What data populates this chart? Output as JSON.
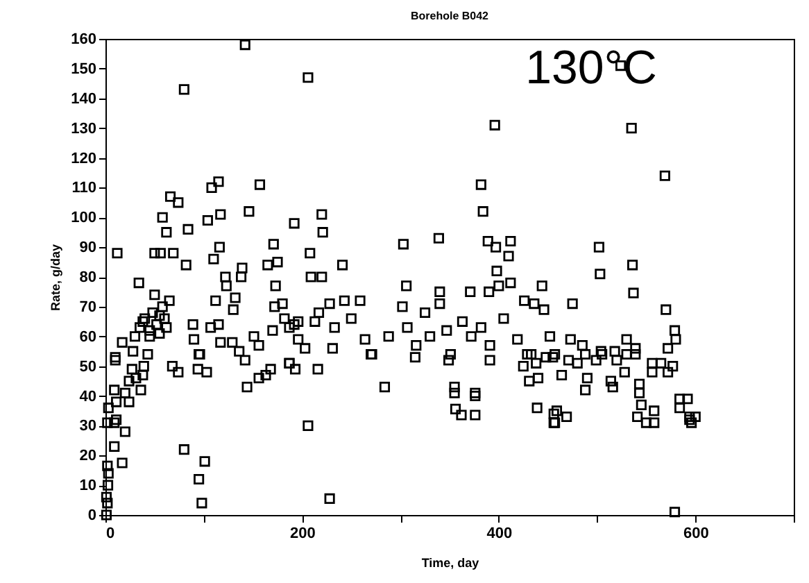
{
  "chart_data": {
    "type": "scatter",
    "title": "Borehole B042",
    "xlabel": "Time, day",
    "ylabel": "Rate, g/day",
    "annotations": [
      "130°C"
    ],
    "xlim": [
      0,
      700
    ],
    "ylim": [
      0,
      160
    ],
    "xticks": [
      0,
      {
        "value": 100,
        "label": null
      },
      200,
      {
        "value": 300,
        "label": null
      },
      400,
      {
        "value": 500,
        "label": null
      },
      600,
      {
        "value": 700,
        "label": null
      }
    ],
    "yticks": [
      0,
      10,
      20,
      30,
      40,
      50,
      60,
      70,
      80,
      90,
      100,
      110,
      120,
      130,
      140,
      150,
      160
    ],
    "grid": false,
    "marker": "square",
    "x": [
      142,
      80,
      12,
      34,
      66,
      74,
      58,
      62,
      84,
      82,
      69,
      50,
      56,
      108,
      115,
      117,
      104,
      116,
      110,
      146,
      157,
      192,
      171,
      175,
      165,
      173,
      122,
      123,
      139,
      138,
      112,
      132,
      130,
      180,
      172,
      17,
      10,
      43,
      89,
      90,
      96,
      107,
      115,
      117,
      129,
      151,
      156,
      170,
      187,
      192,
      196,
      1,
      1,
      2,
      2.5,
      3,
      2,
      9,
      17,
      20,
      2,
      9,
      11,
      3,
      9,
      11,
      20,
      24,
      24,
      31,
      36,
      38,
      39,
      27,
      10,
      80,
      101,
      95,
      98,
      68,
      74,
      94,
      103,
      95,
      136,
      142,
      144,
      156,
      163,
      168,
      187,
      193,
      35,
      40,
      45,
      48,
      52,
      55,
      58,
      60,
      62,
      65,
      45,
      38,
      30,
      28,
      50,
      55,
      206,
      396,
      382,
      384,
      220,
      221,
      208,
      209,
      220,
      241,
      303,
      339,
      306,
      340,
      340,
      371,
      390,
      400,
      398,
      389,
      397,
      412,
      410,
      412,
      444,
      426,
      436,
      446,
      228,
      243,
      259,
      217,
      182,
      196,
      213,
      233,
      250,
      264,
      271,
      288,
      302,
      307,
      316,
      325,
      330,
      347,
      351,
      363,
      372,
      382,
      391,
      405,
      419,
      429,
      438,
      203,
      231,
      206,
      228,
      284,
      355,
      355,
      376,
      376,
      356,
      362,
      376,
      439,
      456,
      456,
      431,
      440,
      187,
      216,
      270,
      315,
      349,
      391,
      425,
      433,
      524,
      535,
      569,
      502,
      503,
      536,
      537,
      475,
      570,
      579,
      580,
      452,
      473,
      530,
      485,
      504,
      518,
      539,
      556,
      572,
      457,
      579,
      455,
      471,
      488,
      505,
      530,
      539,
      565,
      577,
      464,
      490,
      514,
      528,
      543,
      543,
      556,
      572,
      488,
      516,
      584,
      592,
      584,
      594,
      594,
      600,
      596,
      459,
      457,
      469,
      545,
      541,
      558,
      558,
      550,
      448,
      480,
      499,
      520
    ],
    "series": [
      {
        "color": "#000000",
        "values": [
          158,
          143,
          88,
          78,
          107,
          105,
          100,
          95,
          96,
          84,
          88,
          88,
          88,
          110,
          112,
          101,
          99,
          90,
          86,
          102,
          111,
          98,
          91,
          85,
          84,
          77,
          80,
          77,
          83,
          80,
          72,
          73,
          69,
          71,
          70,
          58,
          52,
          54,
          64,
          59,
          54,
          63,
          64,
          58,
          58,
          60,
          57,
          62,
          63,
          64,
          59,
          0,
          6,
          4,
          10,
          14,
          16.5,
          23,
          17.5,
          28,
          31,
          31,
          32,
          36,
          42,
          38,
          41,
          38,
          45,
          46,
          42,
          47,
          50,
          49,
          53,
          22,
          18,
          12,
          4,
          50,
          48,
          49,
          48,
          54,
          55,
          52,
          43,
          46,
          47,
          49,
          51,
          49,
          63,
          66,
          62,
          68,
          64,
          61,
          70,
          66,
          63,
          72,
          60,
          65,
          60,
          55,
          74,
          67,
          147,
          131,
          111,
          102,
          101,
          95,
          88,
          80,
          80,
          84,
          91,
          93,
          77,
          75,
          71,
          75,
          75,
          77,
          82,
          92,
          90,
          92,
          87,
          78,
          77,
          72,
          71,
          69,
          71,
          72,
          72,
          68,
          66,
          65,
          65,
          63,
          66,
          59,
          54,
          60,
          70,
          63,
          57,
          68,
          60,
          62,
          54,
          65,
          60,
          63,
          57,
          66,
          59,
          54,
          51,
          56,
          56,
          30,
          5.5,
          43,
          43,
          41,
          41,
          40,
          35.6,
          33.6,
          33.6,
          36,
          34,
          31,
          45,
          46,
          51,
          49,
          54,
          53,
          52,
          52,
          50,
          54,
          151,
          130,
          114,
          90,
          81,
          84,
          74.6,
          71,
          69,
          62,
          59,
          60,
          59,
          59,
          57,
          55,
          55,
          56,
          51,
          56,
          54,
          1,
          53,
          52,
          54,
          54,
          54,
          54,
          51,
          50,
          47,
          46,
          45,
          48,
          44,
          41,
          48,
          48,
          42,
          43,
          39,
          39,
          36,
          33,
          32,
          33,
          31,
          35,
          31,
          33,
          37,
          33,
          35,
          31,
          31,
          53,
          51,
          52,
          52
        ]
      }
    ]
  }
}
